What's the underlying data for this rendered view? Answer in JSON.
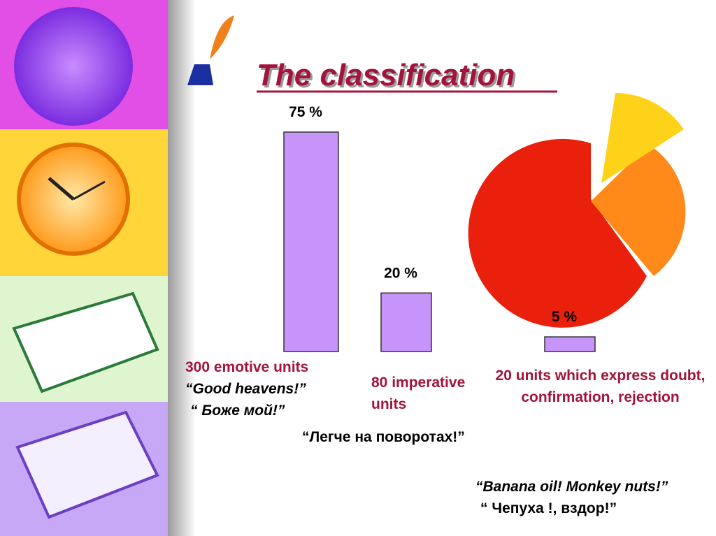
{
  "chart_data": {
    "type": "bar",
    "title": "The classification",
    "categories": [
      "300 emotive  units",
      "80 imperative units",
      "20 units which express doubt, confirmation, rejection"
    ],
    "values": [
      75,
      20,
      5
    ],
    "value_labels": [
      "75 %",
      "20 %",
      "5 %"
    ],
    "color": "#c794f9"
  },
  "examples": [
    "“Good heavens!”",
    "“ Боже мой!”",
    "“Легче на поворотах!”",
    "“Banana oil! Monkey nuts!”",
    "“ Чепуха !, вздор!”"
  ]
}
